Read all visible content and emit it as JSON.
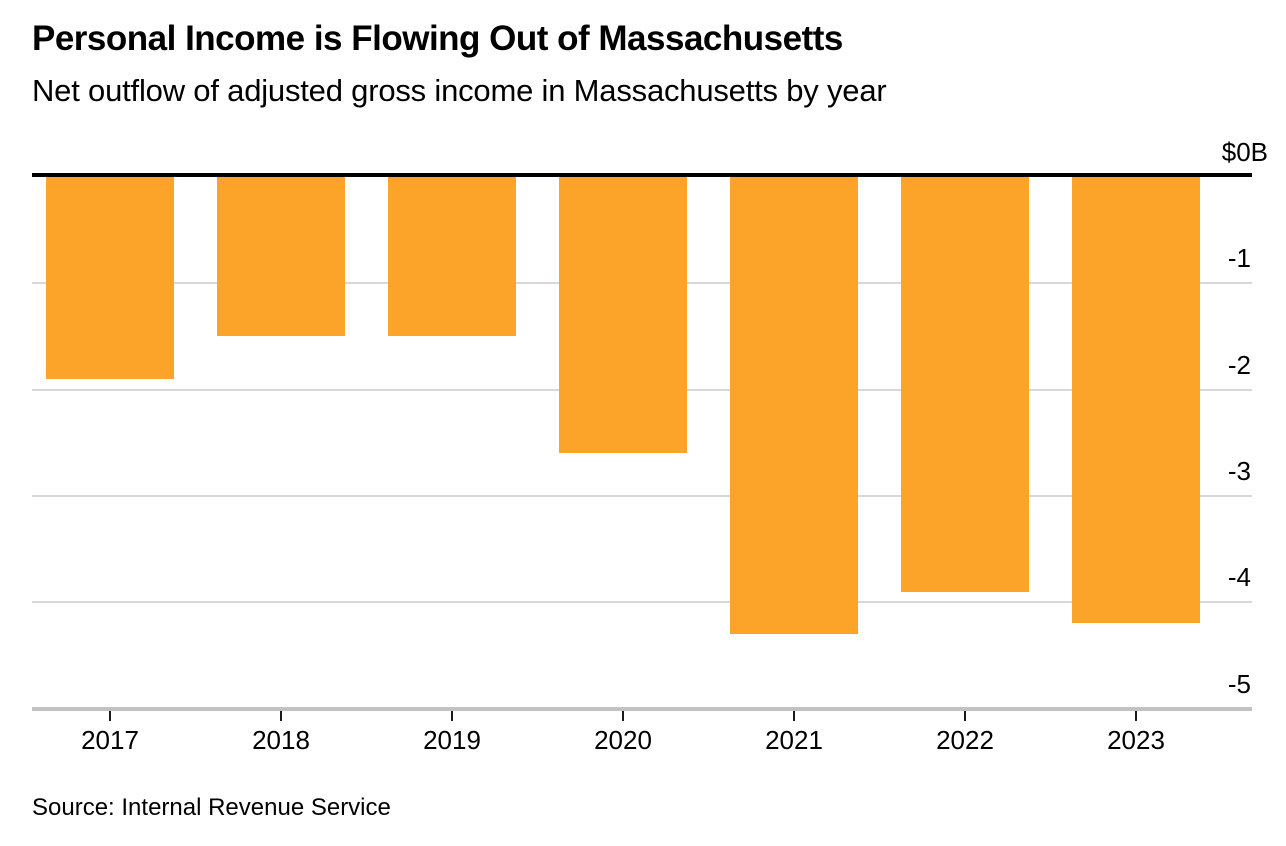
{
  "chart_data": {
    "type": "bar",
    "title": "Personal Income is Flowing Out of Massachusetts",
    "subtitle": "Net outflow of adjusted gross income in Massachusetts by year",
    "source": "Source: Internal Revenue Service",
    "categories": [
      "2017",
      "2018",
      "2019",
      "2020",
      "2021",
      "2022",
      "2023"
    ],
    "values": [
      -1.9,
      -1.5,
      -1.5,
      -2.6,
      -4.3,
      -3.9,
      -4.2
    ],
    "units": "USD billions",
    "xlabel": "",
    "ylabel": "",
    "ylim": [
      -5,
      0
    ],
    "yticks": [
      {
        "value": 0,
        "label": "$0B"
      },
      {
        "value": -1,
        "label": "-1"
      },
      {
        "value": -2,
        "label": "-2"
      },
      {
        "value": -3,
        "label": "-3"
      },
      {
        "value": -4,
        "label": "-4"
      },
      {
        "value": -5,
        "label": "-5"
      }
    ],
    "grid": "horizontal",
    "legend": "none",
    "bar_color": "#FCA32A",
    "baseline_color": "#000000",
    "gridline_color": "#D8D8D8",
    "bottom_axis_color": "#C2C2C2",
    "tick_color": "#1A1A1A",
    "text_color": "#000000",
    "background_color": "#FFFFFF"
  }
}
